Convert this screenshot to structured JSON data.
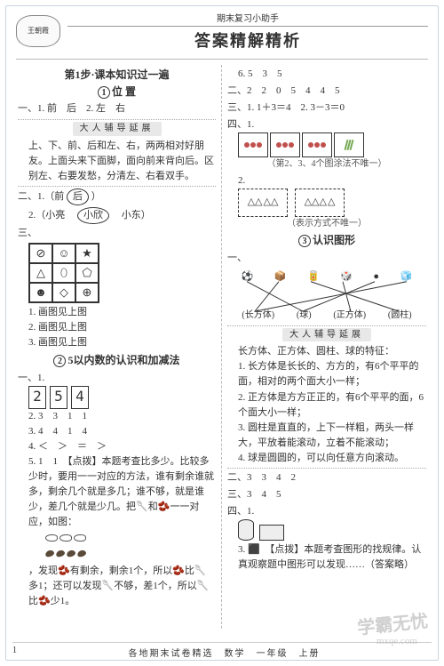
{
  "header": {
    "logo_text": "王朝霞",
    "subtitle": "期末复习小助手",
    "title": "答案精解精析"
  },
  "left": {
    "step_title": "第1步·课本知识过一遍",
    "unit1_label": "1",
    "unit1_title": "位 置",
    "l1_1": "一、1. 前　后　2. 左　右",
    "guide1": "大人辅导延展",
    "guide1_body": "上、下、前、后和左、右，两两相对好朋友。上面头来下面脚，面向前来背向后。区别左、右要发愁，分清左、右看双手。",
    "l2_1a": "二、1.（前",
    "l2_1b": "后",
    "l2_1c": "）",
    "l2_2": "2.（小亮　",
    "l2_2b": "小欣",
    "l2_2c": "　小东）",
    "l3_label": "三、",
    "grid_icons": [
      "⊘",
      "☺",
      "★",
      "△",
      "⬯",
      "⬠",
      "☻",
      "◇",
      "⊕"
    ],
    "l3_items": [
      "1. 画图见上图",
      "2. 画图见上图",
      "3. 画图见上图"
    ],
    "unit2_label": "2",
    "unit2_title": "5以内数的认识和加减法",
    "u2_digits": [
      "2",
      "5",
      "4"
    ],
    "u2_1_label": "一、1.",
    "u2_2": "2. 3　3　1　1",
    "u2_3": "3. 4　4　1　4",
    "u2_4": "4. ＜　＞　＝　＞",
    "u2_5": "5. 1　1　【点拨】本题考查比多少。比较多少时，要用一一对应的方法，谁有剩余谁就多，剩余几个就是多几；谁不够，就是谁少，差几个就是少几。把🥄和🫘一一对应，如图：",
    "u2_5b": "，发现🫘有剩余，剩余1个，所以🫘比🥄多1；还可以发现🥄不够，差1个，所以🥄比🫘少1。"
  },
  "right": {
    "r_6": "6. 5　3　5",
    "r_e2": "二、2　2　0　5　4　4　5",
    "r_e3": "三、1. 1＋3＝4　2. 3－3＝0",
    "r_e4_label": "四、1.",
    "box_note": "（第2、3、4个图涂法不唯一）",
    "r_e4_2_label": "2.",
    "tri_note": "（表示方式不唯一）",
    "unit3_label": "3",
    "unit3_title": "认识图形",
    "shape_top": [
      "⚽",
      "📦",
      "🥫",
      "🎲",
      "●",
      "🧊"
    ],
    "shape_bottom": [
      "(长方体)",
      "(球)",
      "(正方体)",
      "(圆柱)"
    ],
    "match_edges": [
      [
        0,
        1
      ],
      [
        1,
        0
      ],
      [
        2,
        3
      ],
      [
        3,
        2
      ],
      [
        4,
        1
      ],
      [
        5,
        0
      ]
    ],
    "r_1_label": "一、",
    "guide2": "大人辅导延展",
    "guide2_intro": "长方体、正方体、圆柱、球的特征：",
    "guide2_items": [
      "1. 长方体是长长的、方方的，有6个平平的面，相对的两个面大小一样；",
      "2. 正方体是方方正正的，有6个平平的面，6个面大小一样；",
      "3. 圆柱是直直的，上下一样粗，两头一样大，平放着能滚动，立着不能滚动；",
      "4. 球是圆圆的，可以向任意方向滚动。"
    ],
    "r_e2b": "二、3　3　4　2",
    "r_e3b": "三、3　4　5",
    "r_e4b_label": "四、1.",
    "r_3": "3. ⬛　【点拨】本题考查图形的找规律。认真观察题中图形可以发现……（答案略）"
  },
  "footer": {
    "page": "1",
    "mid": "各地期末试卷精选　数学　一年级　上册",
    "right": ""
  },
  "watermark": "学霸无忧",
  "watermark2": "mxqe.com",
  "colors": {
    "text": "#333333",
    "border": "#c8d4e0",
    "guide_bg": "#e8e8e8"
  }
}
